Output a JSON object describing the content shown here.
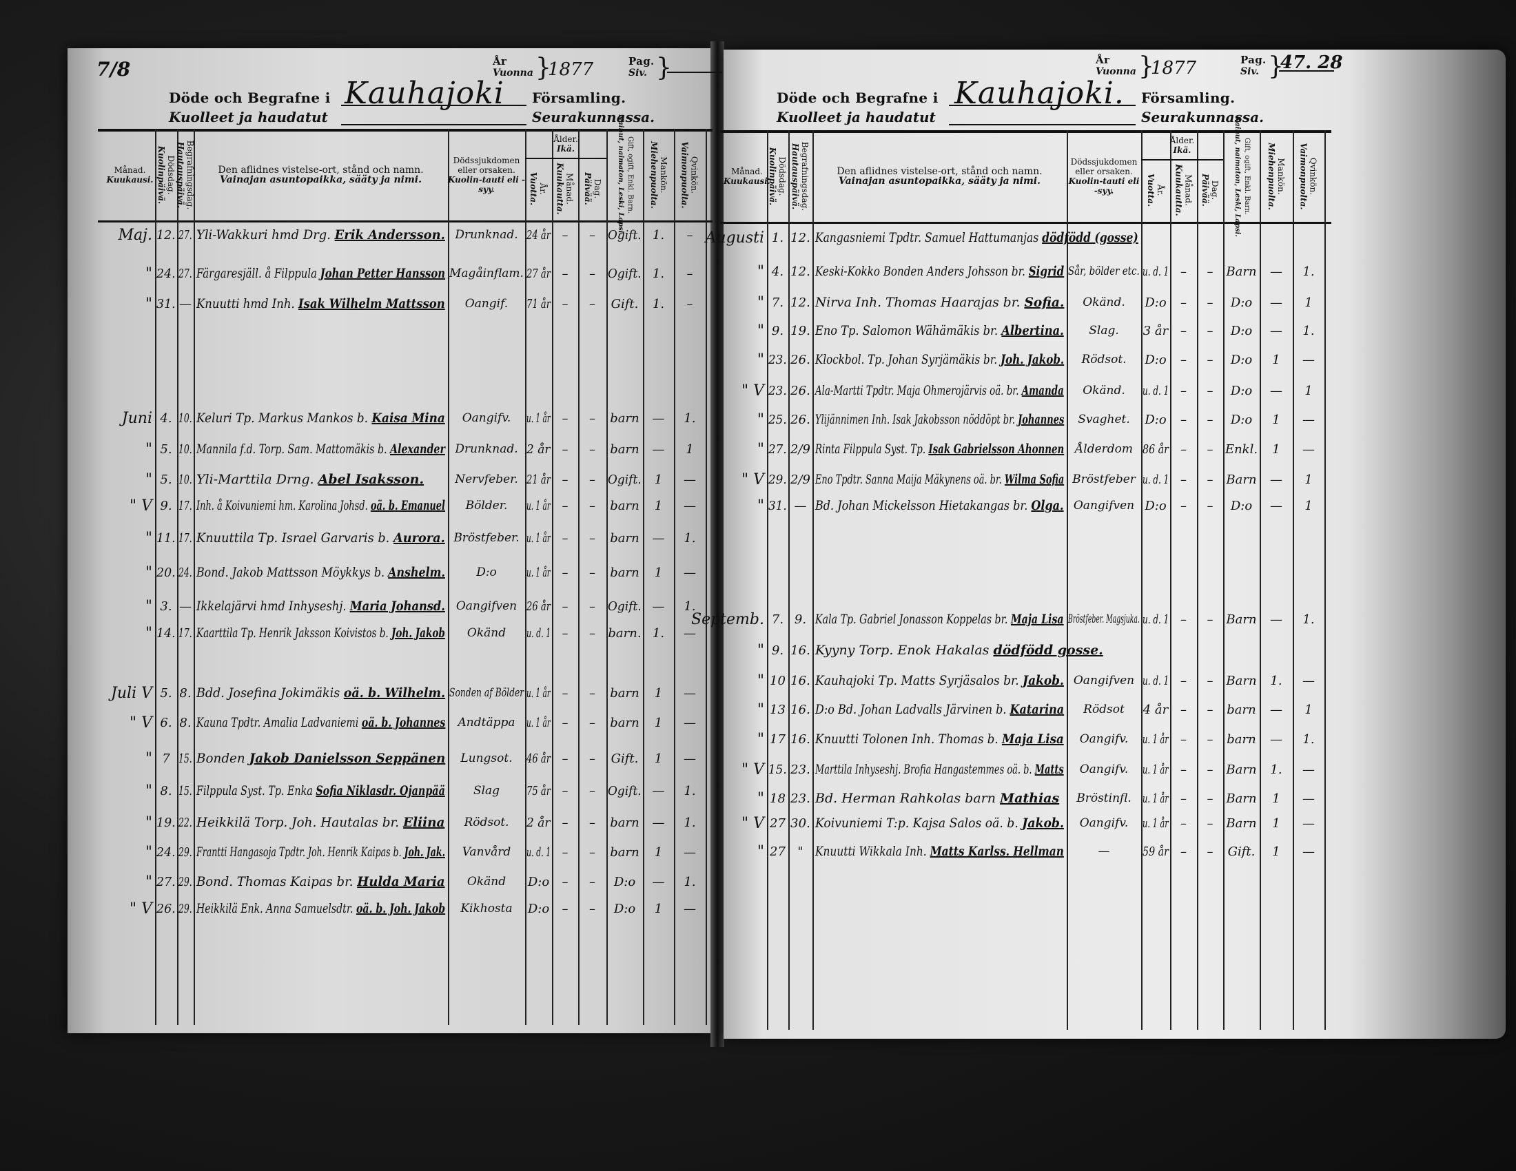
{
  "pages": [
    {
      "side": "left",
      "corner_mark": "7/8",
      "header": {
        "year_label_sv": "År",
        "year_label_fi": "Vuonna",
        "year": "1877",
        "page_label_sv": "Pag.",
        "page_label_fi": "Siv.",
        "page_numbers": "",
        "title_sv": "Döde och Begrafne i",
        "title_fi": "Kuolleet ja haudatut",
        "parish": "Kauhajoki",
        "suffix_sv": "Församling.",
        "suffix_fi": "Seurakunnassa."
      },
      "columns": {
        "month": {
          "sv": "Månad.",
          "fi": "Kuukausi."
        },
        "died": {
          "sv": "Dödsdag.",
          "fi": "Kuolinpäivä."
        },
        "buried": {
          "sv": "Begrafningsdag.",
          "fi": "Hautauspäivä."
        },
        "name": {
          "sv": "Den aflidnes vistelse-ort, stånd och namn.",
          "fi": "Vainajan asuntopaikka, sääty ja nimi."
        },
        "cause": {
          "sv": "Dödssjukdomen eller orsaken.",
          "fi": "Kuolin-tauti eli -syy."
        },
        "age": {
          "sv": "Ålder.",
          "fi": "Ikä."
        },
        "years": {
          "sv": "År.",
          "fi": "Vuotta."
        },
        "months": {
          "sv": "Månad.",
          "fi": "Kuukautta."
        },
        "days": {
          "sv": "Dag.",
          "fi": "Päivää."
        },
        "status": {
          "sv": "Gift, ogift, Enkl. Barn.",
          "fi": "Nainut, naimaton, Leski, Lapsi."
        },
        "male": {
          "sv": "Mankön.",
          "fi": "Miehenpuolta."
        },
        "female": {
          "sv": "Qvinkön.",
          "fi": "Vaimonpuolta."
        }
      },
      "rows": [
        {
          "month": "Maj.",
          "died": "12.",
          "buried": "27.",
          "place": "Yli-Wakkuri hmd Drg.",
          "name": "Erik Andersson.",
          "cause": "Drunknad.",
          "years": "24 år",
          "months": "–",
          "days": "–",
          "status": "Ogift.",
          "male": "1.",
          "female": "–"
        },
        {
          "month": "\"",
          "died": "24.",
          "buried": "27.",
          "place": "Färgaresjäll. å Filppula",
          "name": "Johan Petter Hansson",
          "cause": "Magåinflam.",
          "years": "27 år",
          "months": "–",
          "days": "–",
          "status": "Ogift.",
          "male": "1.",
          "female": "–"
        },
        {
          "month": "\"",
          "died": "31.",
          "buried": "—",
          "place": "Knuutti hmd Inh.",
          "name": "Isak Wilhelm Mattsson",
          "cause": "Oangif.",
          "years": "71 år",
          "months": "–",
          "days": "–",
          "status": "Gift.",
          "male": "1.",
          "female": "–"
        },
        {
          "month": "Juni",
          "died": "4.",
          "buried": "10.",
          "place": "Keluri Tp. Markus Mankos b.",
          "name": "Kaisa Mina",
          "cause": "Oangifv.",
          "years": "u. 1 år",
          "months": "–",
          "days": "–",
          "status": "barn",
          "male": "—",
          "female": "1."
        },
        {
          "month": "\"",
          "died": "5.",
          "buried": "10.",
          "place": "Mannila f.d. Torp. Sam. Mattomäkis b.",
          "name": "Alexander",
          "cause": "Drunknad.",
          "years": "2 år",
          "months": "–",
          "days": "–",
          "status": "barn",
          "male": "—",
          "female": "1"
        },
        {
          "month": "\"",
          "died": "5.",
          "buried": "10.",
          "place": "Yli-Marttila Drng.",
          "name": "Abel Isaksson.",
          "cause": "Nervfeber.",
          "years": "21 år",
          "months": "–",
          "days": "–",
          "status": "Ogift.",
          "male": "1",
          "female": "—"
        },
        {
          "month": "\" V",
          "died": "9.",
          "buried": "17.",
          "place": "Inh. å Koivuniemi hm. Karolina Johsd.",
          "name": "oä. b. Emanuel",
          "cause": "Bölder.",
          "years": "u. 1 år",
          "months": "–",
          "days": "–",
          "status": "barn",
          "male": "1",
          "female": "—"
        },
        {
          "month": "\"",
          "died": "11.",
          "buried": "17.",
          "place": "Knuuttila Tp. Israel Garvaris b.",
          "name": "Aurora.",
          "cause": "Bröstfeber.",
          "years": "u. 1 år",
          "months": "–",
          "days": "–",
          "status": "barn",
          "male": "—",
          "female": "1."
        },
        {
          "month": "\"",
          "died": "20.",
          "buried": "24.",
          "place": "Bond. Jakob Mattsson Möykkys b.",
          "name": "Anshelm.",
          "cause": "D:o",
          "years": "u. 1 år",
          "months": "–",
          "days": "–",
          "status": "barn",
          "male": "1",
          "female": "—"
        },
        {
          "month": "\"",
          "died": "3.",
          "buried": "—",
          "place": "Ikkelajärvi hmd Inhyseshj.",
          "name": "Maria Johansd.",
          "cause": "Oangifven",
          "years": "26 år",
          "months": "–",
          "days": "–",
          "status": "Ogift.",
          "male": "—",
          "female": "1."
        },
        {
          "month": "\"",
          "died": "14.",
          "buried": "17.",
          "place": "Kaarttila Tp. Henrik Jaksson Koivistos b.",
          "name": "Joh. Jakob",
          "cause": "Okänd",
          "years": "u. d. 1",
          "months": "–",
          "days": "–",
          "status": "barn.",
          "male": "1.",
          "female": "—"
        },
        {
          "month": "Juli V",
          "died": "5.",
          "buried": "8.",
          "place": "Bdd. Josefina Jokimäkis",
          "name": "oä. b. Wilhelm.",
          "cause": "Sonden af Bölder",
          "years": "u. 1 år",
          "months": "–",
          "days": "–",
          "status": "barn",
          "male": "1",
          "female": "—"
        },
        {
          "month": "\" V",
          "died": "6.",
          "buried": "8.",
          "place": "Kauna Tpdtr. Amalia Ladvaniemi",
          "name": "oä. b. Johannes",
          "cause": "Andtäppa",
          "years": "u. 1 år",
          "months": "–",
          "days": "–",
          "status": "barn",
          "male": "1",
          "female": "—"
        },
        {
          "month": "\"",
          "died": "7",
          "buried": "15.",
          "place": "Bonden",
          "name": "Jakob Danielsson Seppänen",
          "cause": "Lungsot.",
          "years": "46 år",
          "months": "–",
          "days": "–",
          "status": "Gift.",
          "male": "1",
          "female": "—"
        },
        {
          "month": "\"",
          "died": "8.",
          "buried": "15.",
          "place": "Filppula Syst. Tp. Enka",
          "name": "Sofia Niklasdr. Ojanpää",
          "cause": "Slag",
          "years": "75 år",
          "months": "–",
          "days": "–",
          "status": "Ogift.",
          "male": "—",
          "female": "1."
        },
        {
          "month": "\"",
          "died": "19.",
          "buried": "22.",
          "place": "Heikkilä Torp. Joh. Hautalas br.",
          "name": "Eliina",
          "cause": "Rödsot.",
          "years": "2 år",
          "months": "–",
          "days": "–",
          "status": "barn",
          "male": "—",
          "female": "1."
        },
        {
          "month": "\"",
          "died": "24.",
          "buried": "29.",
          "place": "Frantti Hangasoja Tpdtr. Joh. Henrik Kaipas b.",
          "name": "Joh. Jak.",
          "cause": "Vanvård",
          "years": "u. d. 1",
          "months": "–",
          "days": "–",
          "status": "barn",
          "male": "1",
          "female": "—"
        },
        {
          "month": "\"",
          "died": "27.",
          "buried": "29.",
          "place": "Bond. Thomas Kaipas br.",
          "name": "Hulda Maria",
          "cause": "Okänd",
          "years": "D:o",
          "months": "–",
          "days": "–",
          "status": "D:o",
          "male": "—",
          "female": "1."
        },
        {
          "month": "\" V",
          "died": "26.",
          "buried": "29.",
          "place": "Heikkilä Enk. Anna Samuelsdtr.",
          "name": "oä. b. Joh. Jakob",
          "cause": "Kikhosta",
          "years": "D:o",
          "months": "–",
          "days": "–",
          "status": "D:o",
          "male": "1",
          "female": "—"
        }
      ]
    },
    {
      "side": "right",
      "corner_mark": "",
      "header": {
        "year_label_sv": "År",
        "year_label_fi": "Vuonna",
        "year": "1877",
        "page_label_sv": "Pag.",
        "page_label_fi": "Siv.",
        "page_numbers": "47. 28",
        "title_sv": "Döde och Begrafne i",
        "title_fi": "Kuolleet ja haudatut",
        "parish": "Kauhajoki.",
        "suffix_sv": "Församling.",
        "suffix_fi": "Seurakunnassa."
      },
      "columns": {
        "month": {
          "sv": "Månad.",
          "fi": "Kuukausi."
        },
        "died": {
          "sv": "Dödsdag.",
          "fi": "Kuolinpäivä."
        },
        "buried": {
          "sv": "Begrafningsdag.",
          "fi": "Hautauspäivä."
        },
        "name": {
          "sv": "Den aflidnes vistelse-ort, stånd och namn.",
          "fi": "Vainajan asuntopaikka, sääty ja nimi."
        },
        "cause": {
          "sv": "Dödssjukdomen eller orsaken.",
          "fi": "Kuolin-tauti eli -syy."
        },
        "age": {
          "sv": "Ålder.",
          "fi": "Ikä."
        },
        "years": {
          "sv": "År.",
          "fi": "Vuotta."
        },
        "months": {
          "sv": "Månad.",
          "fi": "Kuukautta."
        },
        "days": {
          "sv": "Dag.",
          "fi": "Päivää."
        },
        "status": {
          "sv": "Gift, ogift, Enkl. Barn.",
          "fi": "Nainut, naimaton, Leski, Lapsi."
        },
        "male": {
          "sv": "Mankön.",
          "fi": "Miehenpuolta."
        },
        "female": {
          "sv": "Qvinkön.",
          "fi": "Vaimonpuolta."
        }
      },
      "rows": [
        {
          "month": "Augusti",
          "died": "1.",
          "buried": "12.",
          "place": "Kangasniemi Tpdtr. Samuel Hattumanjas",
          "name": "dödfödd (gosse)",
          "cause": "",
          "years": "",
          "months": "",
          "days": "",
          "status": "",
          "male": "",
          "female": ""
        },
        {
          "month": "\"",
          "died": "4.",
          "buried": "12.",
          "place": "Keski-Kokko Bonden Anders Johsson br.",
          "name": "Sigrid",
          "cause": "Sår, bölder etc.",
          "years": "u. d. 1",
          "months": "–",
          "days": "–",
          "status": "Barn",
          "male": "—",
          "female": "1."
        },
        {
          "month": "\"",
          "died": "7.",
          "buried": "12.",
          "place": "Nirva Inh. Thomas Haarajas br.",
          "name": "Sofia.",
          "cause": "Okänd.",
          "years": "D:o",
          "months": "–",
          "days": "–",
          "status": "D:o",
          "male": "—",
          "female": "1"
        },
        {
          "month": "\"",
          "died": "9.",
          "buried": "19.",
          "place": "Eno Tp. Salomon Wähämäkis br.",
          "name": "Albertina.",
          "cause": "Slag.",
          "years": "3 år",
          "months": "–",
          "days": "–",
          "status": "D:o",
          "male": "—",
          "female": "1."
        },
        {
          "month": "\"",
          "died": "23.",
          "buried": "26.",
          "place": "Klockbol. Tp. Johan Syrjämäkis br.",
          "name": "Joh. Jakob.",
          "cause": "Rödsot.",
          "years": "D:o",
          "months": "–",
          "days": "–",
          "status": "D:o",
          "male": "1",
          "female": "—"
        },
        {
          "month": "\" V",
          "died": "23.",
          "buried": "26.",
          "place": "Ala-Martti Tpdtr. Maja Ohmerojärvis oä. br.",
          "name": "Amanda",
          "cause": "Okänd.",
          "years": "u. d. 1",
          "months": "–",
          "days": "–",
          "status": "D:o",
          "male": "—",
          "female": "1"
        },
        {
          "month": "\"",
          "died": "25.",
          "buried": "26.",
          "place": "Ylijännimen Inh. Isak Jakobsson nöddöpt br.",
          "name": "Johannes",
          "cause": "Svaghet.",
          "years": "D:o",
          "months": "–",
          "days": "–",
          "status": "D:o",
          "male": "1",
          "female": "—"
        },
        {
          "month": "\"",
          "died": "27.",
          "buried": "2/9",
          "place": "Rinta Filppula Syst. Tp.",
          "name": "Isak Gabrielsson Ahonnen",
          "cause": "Ålderdom",
          "years": "86 år",
          "months": "–",
          "days": "–",
          "status": "Enkl.",
          "male": "1",
          "female": "—"
        },
        {
          "month": "\" V",
          "died": "29.",
          "buried": "2/9",
          "place": "Eno Tpdtr. Sanna Maija Mäkynens oä. br.",
          "name": "Wilma Sofia",
          "cause": "Bröstfeber",
          "years": "u. d. 1",
          "months": "–",
          "days": "–",
          "status": "Barn",
          "male": "—",
          "female": "1"
        },
        {
          "month": "\"",
          "died": "31.",
          "buried": "—",
          "place": "Bd. Johan Mickelsson Hietakangas br.",
          "name": "Olga.",
          "cause": "Oangifven",
          "years": "D:o",
          "months": "–",
          "days": "–",
          "status": "D:o",
          "male": "—",
          "female": "1"
        },
        {
          "month": "Septemb.",
          "died": "7.",
          "buried": "9.",
          "place": "Kala Tp. Gabriel Jonasson Koppelas br.",
          "name": "Maja Lisa",
          "cause": "Bröstfeber. Magsjuka.",
          "years": "u. d. 1",
          "months": "–",
          "days": "–",
          "status": "Barn",
          "male": "—",
          "female": "1."
        },
        {
          "month": "\"",
          "died": "9.",
          "buried": "16.",
          "place": "Kyyny Torp. Enok Hakalas",
          "name": "dödfödd gosse.",
          "cause": "",
          "years": "",
          "months": "",
          "days": "",
          "status": "",
          "male": "",
          "female": ""
        },
        {
          "month": "\"",
          "died": "10",
          "buried": "16.",
          "place": "Kauhajoki Tp. Matts Syrjäsalos br.",
          "name": "Jakob.",
          "cause": "Oangifven",
          "years": "u. d. 1",
          "months": "–",
          "days": "–",
          "status": "Barn",
          "male": "1.",
          "female": "—"
        },
        {
          "month": "\"",
          "died": "13",
          "buried": "16.",
          "place": "D:o Bd. Johan Ladvalls Järvinen b.",
          "name": "Katarina",
          "cause": "Rödsot",
          "years": "4 år",
          "months": "–",
          "days": "–",
          "status": "barn",
          "male": "—",
          "female": "1"
        },
        {
          "month": "\"",
          "died": "17",
          "buried": "16.",
          "place": "Knuutti Tolonen Inh. Thomas b.",
          "name": "Maja Lisa",
          "cause": "Oangifv.",
          "years": "u. 1 år",
          "months": "–",
          "days": "–",
          "status": "barn",
          "male": "—",
          "female": "1."
        },
        {
          "month": "\" V",
          "died": "15.",
          "buried": "23.",
          "place": "Marttila Inhyseshj. Brofia Hangastemmes oä. b.",
          "name": "Matts",
          "cause": "Oangifv.",
          "years": "u. 1 år",
          "months": "–",
          "days": "–",
          "status": "Barn",
          "male": "1.",
          "female": "—"
        },
        {
          "month": "\"",
          "died": "18",
          "buried": "23.",
          "place": "Bd. Herman Rahkolas barn",
          "name": "Mathias",
          "cause": "Bröstinfl.",
          "years": "u. 1 år",
          "months": "–",
          "days": "–",
          "status": "Barn",
          "male": "1",
          "female": "—"
        },
        {
          "month": "\" V",
          "died": "27",
          "buried": "30.",
          "place": "Koivuniemi T:p. Kajsa Salos oä. b.",
          "name": "Jakob.",
          "cause": "Oangifv.",
          "years": "u. 1 år",
          "months": "–",
          "days": "–",
          "status": "Barn",
          "male": "1",
          "female": "—"
        },
        {
          "month": "\"",
          "died": "27",
          "buried": "\"",
          "place": "Knuutti Wikkala Inh.",
          "name": "Matts Karlss. Hellman",
          "cause": "—",
          "years": "59 år",
          "months": "–",
          "days": "–",
          "status": "Gift.",
          "male": "1",
          "female": "—"
        }
      ]
    }
  ]
}
